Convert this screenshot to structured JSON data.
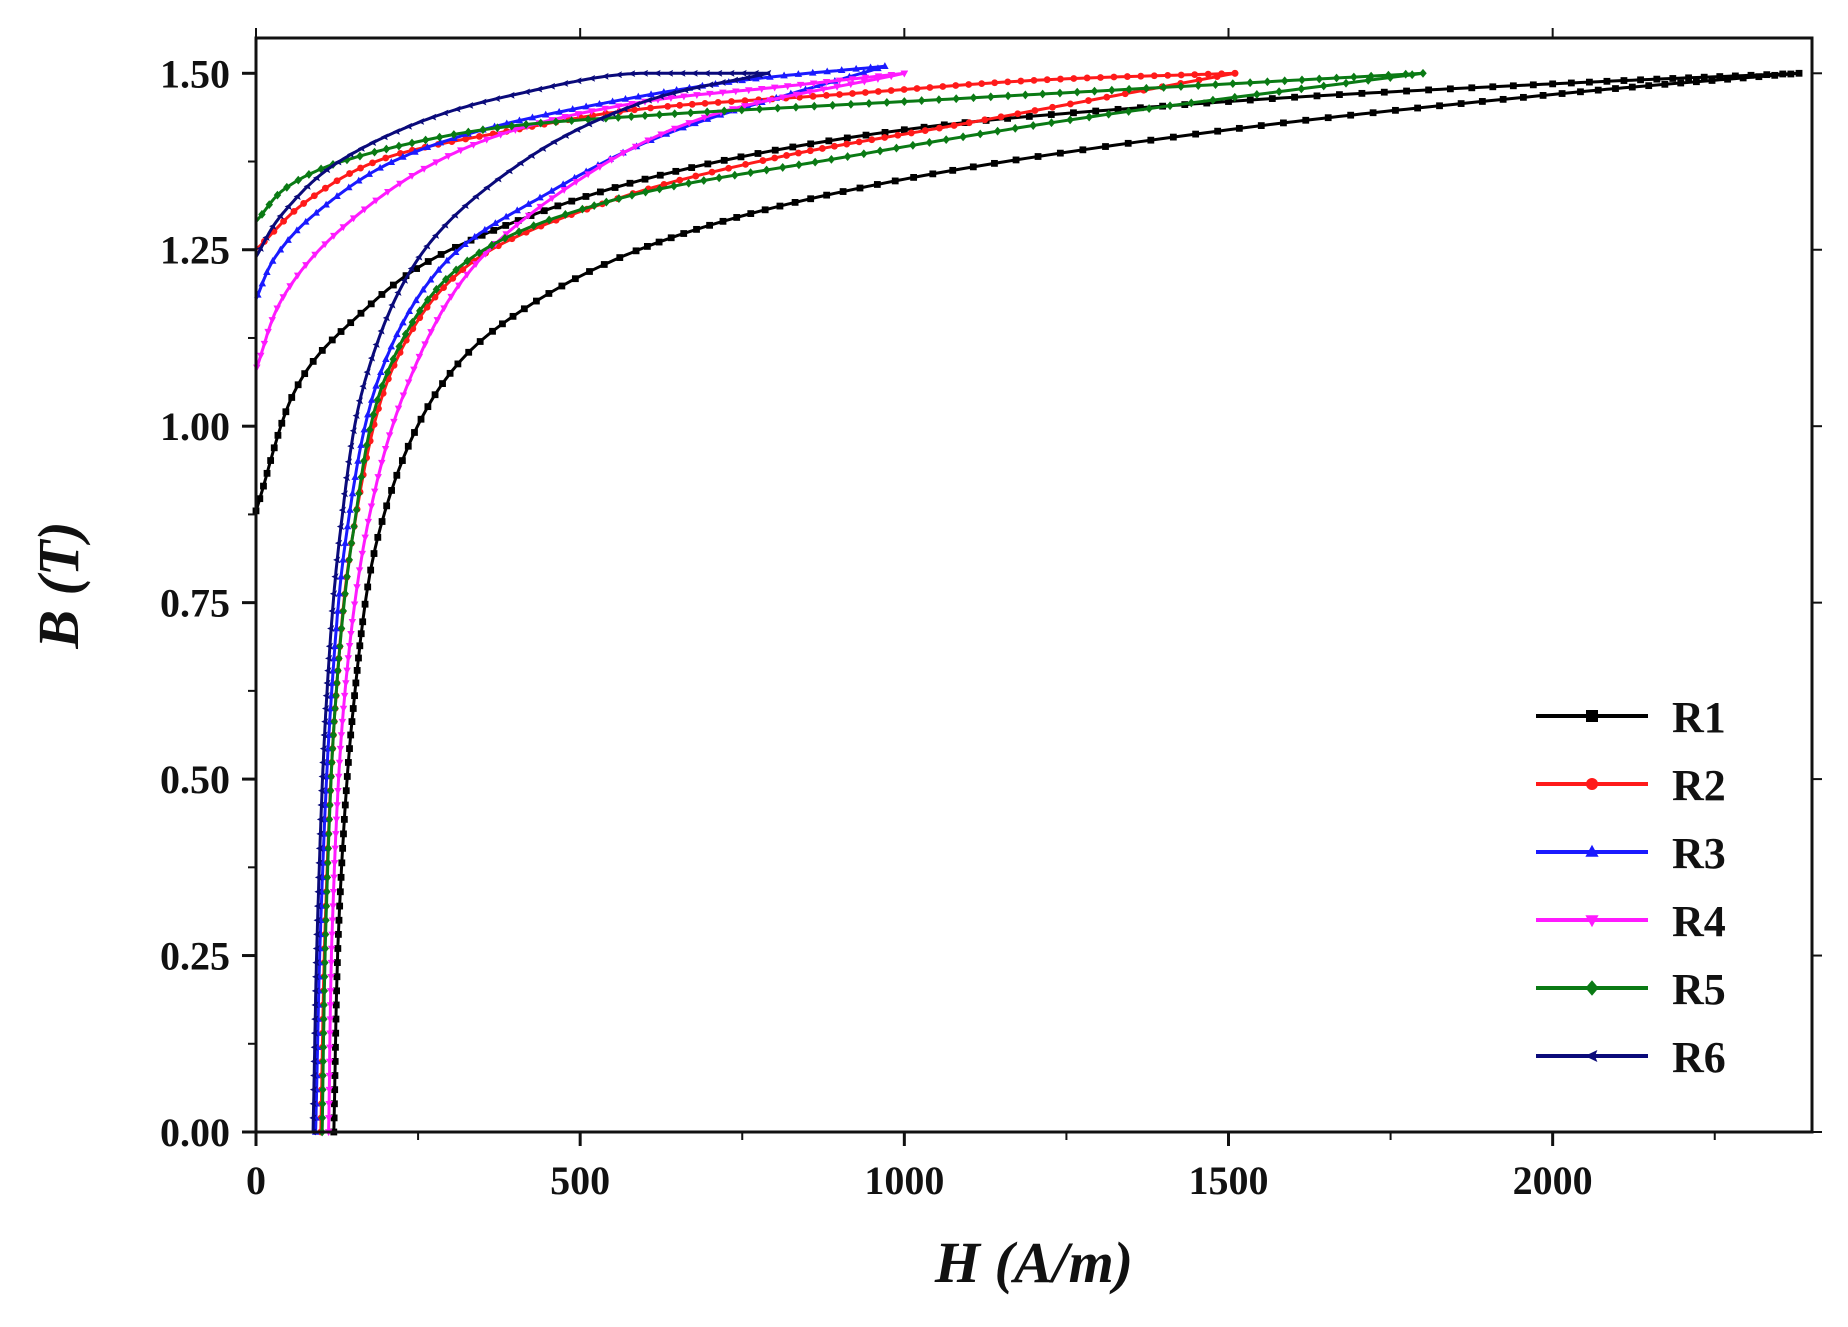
{
  "chart_data": {
    "type": "line",
    "title": "",
    "xlabel": "H (A/m)",
    "ylabel": "B (T)",
    "xlim": [
      0,
      2400
    ],
    "ylim": [
      0,
      1.55
    ],
    "x_ticks": [
      0,
      500,
      1000,
      1500,
      2000
    ],
    "x_tick_labels": [
      "0",
      "500",
      "1000",
      "1500",
      "2000"
    ],
    "y_ticks": [
      0,
      0.25,
      0.5,
      0.75,
      1.0,
      1.25,
      1.5
    ],
    "y_tick_labels": [
      "0.00",
      "0.25",
      "0.50",
      "0.75",
      "1.00",
      "1.25",
      "1.50"
    ],
    "legend_position": "bottom-right",
    "series": [
      {
        "name": "R1",
        "color": "#000000",
        "marker": "square",
        "hmax": 2380,
        "ascending": [
          [
            120,
            0
          ],
          [
            128,
            0.3
          ],
          [
            150,
            0.6
          ],
          [
            190,
            0.85
          ],
          [
            280,
            1.05
          ],
          [
            420,
            1.17
          ],
          [
            650,
            1.27
          ],
          [
            1000,
            1.35
          ],
          [
            1500,
            1.42
          ],
          [
            2000,
            1.47
          ],
          [
            2380,
            1.5
          ]
        ],
        "descending": [
          [
            2380,
            1.5
          ],
          [
            2000,
            1.485
          ],
          [
            1500,
            1.46
          ],
          [
            1000,
            1.42
          ],
          [
            600,
            1.35
          ],
          [
            300,
            1.25
          ],
          [
            150,
            1.15
          ],
          [
            60,
            1.05
          ],
          [
            0,
            0.88
          ]
        ]
      },
      {
        "name": "R2",
        "color": "#ff1a1a",
        "marker": "circle",
        "hmax": 1510,
        "ascending": [
          [
            100,
            0
          ],
          [
            107,
            0.3
          ],
          [
            122,
            0.6
          ],
          [
            150,
            0.85
          ],
          [
            210,
            1.08
          ],
          [
            330,
            1.23
          ],
          [
            550,
            1.32
          ],
          [
            800,
            1.38
          ],
          [
            1100,
            1.43
          ],
          [
            1510,
            1.5
          ]
        ],
        "descending": [
          [
            1510,
            1.5
          ],
          [
            1200,
            1.49
          ],
          [
            900,
            1.47
          ],
          [
            600,
            1.45
          ],
          [
            400,
            1.42
          ],
          [
            200,
            1.38
          ],
          [
            80,
            1.32
          ],
          [
            0,
            1.25
          ]
        ]
      },
      {
        "name": "R3",
        "color": "#1a1aff",
        "marker": "triangle-up",
        "hmax": 970,
        "ascending": [
          [
            92,
            0
          ],
          [
            100,
            0.3
          ],
          [
            115,
            0.6
          ],
          [
            140,
            0.85
          ],
          [
            190,
            1.07
          ],
          [
            290,
            1.23
          ],
          [
            450,
            1.33
          ],
          [
            650,
            1.42
          ],
          [
            970,
            1.51
          ]
        ],
        "descending": [
          [
            970,
            1.51
          ],
          [
            750,
            1.49
          ],
          [
            550,
            1.46
          ],
          [
            350,
            1.42
          ],
          [
            200,
            1.37
          ],
          [
            90,
            1.3
          ],
          [
            30,
            1.24
          ],
          [
            0,
            1.18
          ]
        ]
      },
      {
        "name": "R4",
        "color": "#ff1aff",
        "marker": "triangle-down",
        "hmax": 1000,
        "ascending": [
          [
            112,
            0
          ],
          [
            118,
            0.3
          ],
          [
            135,
            0.6
          ],
          [
            170,
            0.85
          ],
          [
            230,
            1.05
          ],
          [
            330,
            1.22
          ],
          [
            500,
            1.35
          ],
          [
            700,
            1.44
          ],
          [
            1000,
            1.5
          ]
        ],
        "descending": [
          [
            1000,
            1.5
          ],
          [
            800,
            1.48
          ],
          [
            600,
            1.46
          ],
          [
            400,
            1.42
          ],
          [
            250,
            1.36
          ],
          [
            120,
            1.27
          ],
          [
            40,
            1.18
          ],
          [
            0,
            1.08
          ]
        ]
      },
      {
        "name": "R5",
        "color": "#0a7a14",
        "marker": "diamond",
        "hmax": 1800,
        "ascending": [
          [
            102,
            0
          ],
          [
            108,
            0.3
          ],
          [
            122,
            0.6
          ],
          [
            150,
            0.85
          ],
          [
            200,
            1.07
          ],
          [
            320,
            1.23
          ],
          [
            550,
            1.32
          ],
          [
            900,
            1.38
          ],
          [
            1300,
            1.44
          ],
          [
            1800,
            1.5
          ]
        ],
        "descending": [
          [
            1800,
            1.5
          ],
          [
            1400,
            1.48
          ],
          [
            1000,
            1.46
          ],
          [
            600,
            1.44
          ],
          [
            350,
            1.42
          ],
          [
            150,
            1.38
          ],
          [
            50,
            1.34
          ],
          [
            0,
            1.29
          ]
        ]
      },
      {
        "name": "R6",
        "color": "#0a0a7a",
        "marker": "star",
        "hmax": 790,
        "ascending": [
          [
            88,
            0
          ],
          [
            95,
            0.3
          ],
          [
            108,
            0.6
          ],
          [
            130,
            0.85
          ],
          [
            170,
            1.07
          ],
          [
            260,
            1.25
          ],
          [
            420,
            1.38
          ],
          [
            600,
            1.46
          ],
          [
            790,
            1.5
          ]
        ],
        "descending": [
          [
            790,
            1.5
          ],
          [
            600,
            1.5
          ],
          [
            400,
            1.47
          ],
          [
            250,
            1.43
          ],
          [
            120,
            1.37
          ],
          [
            40,
            1.3
          ],
          [
            0,
            1.24
          ]
        ]
      }
    ]
  }
}
